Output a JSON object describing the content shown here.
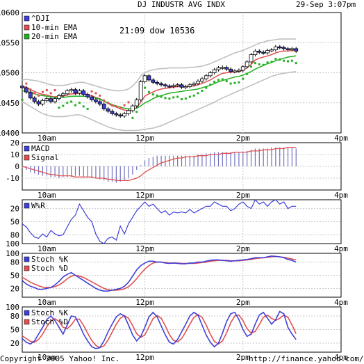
{
  "header": {
    "title": "DJ INDUSTR AVG INDX",
    "timestamp": "29-Sep 3:07pm"
  },
  "footer": {
    "copyright": "Copyright 2005 Yahoo! Inc.",
    "url": "http://finance.yahoo.com/"
  },
  "x_axis": {
    "range_hours": [
      9.5,
      16.0
    ],
    "ticks": [
      {
        "label": "10am",
        "t": 10.0
      },
      {
        "label": "12pm",
        "t": 12.0
      },
      {
        "label": "2pm",
        "t": 14.0
      },
      {
        "label": "4pm",
        "t": 16.0
      }
    ]
  },
  "chart_data": [
    {
      "type": "candlestick",
      "annotation": "21:09 dow 10536",
      "ylim": [
        10400,
        10600
      ],
      "yticks": [
        10400,
        10450,
        10500,
        10550,
        10600
      ],
      "grid": true,
      "legend_position": "top-left",
      "series": [
        {
          "name": "^DJI",
          "color": "#3f3fd8"
        },
        {
          "name": "10-min EMA",
          "color": "#e05050"
        },
        {
          "name": "20-min EMA",
          "color": "#22b022"
        }
      ],
      "t": [
        9.5,
        9.583,
        9.667,
        9.75,
        9.833,
        9.917,
        10.0,
        10.083,
        10.167,
        10.25,
        10.333,
        10.417,
        10.5,
        10.583,
        10.667,
        10.75,
        10.833,
        10.917,
        11.0,
        11.083,
        11.167,
        11.25,
        11.333,
        11.417,
        11.5,
        11.583,
        11.667,
        11.75,
        11.833,
        11.917,
        12.0,
        12.083,
        12.167,
        12.25,
        12.333,
        12.417,
        12.5,
        12.583,
        12.667,
        12.75,
        12.833,
        12.917,
        13.0,
        13.083,
        13.167,
        13.25,
        13.333,
        13.417,
        13.5,
        13.583,
        13.667,
        13.75,
        13.833,
        13.917,
        14.0,
        14.083,
        14.167,
        14.25,
        14.333,
        14.417,
        14.5,
        14.583,
        14.667,
        14.75,
        14.833,
        14.917,
        15.0,
        15.083
      ],
      "price": [
        10475,
        10468,
        10458,
        10452,
        10448,
        10454,
        10457,
        10452,
        10457,
        10462,
        10465,
        10470,
        10472,
        10466,
        10470,
        10464,
        10460,
        10455,
        10452,
        10448,
        10440,
        10436,
        10432,
        10430,
        10428,
        10432,
        10437,
        10445,
        10455,
        10485,
        10495,
        10488,
        10484,
        10482,
        10480,
        10478,
        10477,
        10479,
        10480,
        10476,
        10477,
        10480,
        10482,
        10486,
        10490,
        10495,
        10500,
        10505,
        10508,
        10509,
        10506,
        10502,
        10503,
        10504,
        10510,
        10518,
        10530,
        10536,
        10534,
        10533,
        10537,
        10538,
        10543,
        10542,
        10540,
        10539,
        10540,
        10536
      ],
      "ema10": [
        10477,
        10476,
        10472,
        10469,
        10466,
        10464,
        10463,
        10461,
        10460,
        10461,
        10461,
        10463,
        10465,
        10465,
        10466,
        10465,
        10464,
        10462,
        10459,
        10457,
        10453,
        10449,
        10445,
        10443,
        10440,
        10438,
        10437,
        10438,
        10442,
        10451,
        10461,
        10465,
        10468,
        10471,
        10473,
        10474,
        10475,
        10476,
        10477,
        10477,
        10477,
        10478,
        10478,
        10480,
        10482,
        10485,
        10488,
        10492,
        10496,
        10499,
        10500,
        10501,
        10501,
        10502,
        10504,
        10508,
        10514,
        10521,
        10524,
        10526,
        10528,
        10530,
        10533,
        10535,
        10536,
        10536,
        10537,
        10536
      ],
      "ema20": [
        10470,
        10469,
        10467,
        10465,
        10463,
        10462,
        10461,
        10460,
        10459,
        10459,
        10459,
        10460,
        10461,
        10461,
        10461,
        10461,
        10460,
        10459,
        10458,
        10456,
        10453,
        10450,
        10447,
        10445,
        10443,
        10441,
        10440,
        10440,
        10441,
        10445,
        10450,
        10453,
        10457,
        10460,
        10462,
        10464,
        10466,
        10467,
        10468,
        10469,
        10470,
        10471,
        10472,
        10473,
        10475,
        10477,
        10479,
        10482,
        10485,
        10487,
        10489,
        10491,
        10493,
        10494,
        10496,
        10499,
        10502,
        10506,
        10509,
        10512,
        10515,
        10517,
        10520,
        10522,
        10524,
        10526,
        10527,
        10528
      ],
      "bollinger_upper": [
        10488,
        10489,
        10488,
        10487,
        10486,
        10484,
        10482,
        10480,
        10479,
        10479,
        10479,
        10480,
        10482,
        10483,
        10484,
        10484,
        10482,
        10480,
        10478,
        10476,
        10474,
        10472,
        10471,
        10470,
        10470,
        10471,
        10473,
        10478,
        10485,
        10495,
        10500,
        10503,
        10505,
        10506,
        10507,
        10507,
        10508,
        10508,
        10508,
        10508,
        10508,
        10509,
        10509,
        10510,
        10511,
        10513,
        10515,
        10518,
        10521,
        10524,
        10527,
        10530,
        10533,
        10535,
        10537,
        10540,
        10543,
        10546,
        10549,
        10551,
        10553,
        10554,
        10555,
        10556,
        10556,
        10556,
        10556,
        10556
      ],
      "bollinger_lower": [
        10452,
        10448,
        10444,
        10440,
        10436,
        10432,
        10430,
        10428,
        10427,
        10427,
        10427,
        10428,
        10429,
        10430,
        10430,
        10428,
        10425,
        10422,
        10419,
        10416,
        10413,
        10410,
        10408,
        10406,
        10405,
        10404,
        10404,
        10404,
        10404,
        10405,
        10406,
        10407,
        10408,
        10410,
        10412,
        10415,
        10418,
        10421,
        10424,
        10427,
        10430,
        10433,
        10436,
        10439,
        10442,
        10445,
        10448,
        10451,
        10455,
        10458,
        10461,
        10464,
        10467,
        10470,
        10473,
        10476,
        10479,
        10482,
        10485,
        10488,
        10491,
        10494,
        10496,
        10498,
        10499,
        10500,
        10501,
        10502
      ]
    },
    {
      "type": "bar+line",
      "ylim": [
        -20,
        20
      ],
      "yticks": [
        -10,
        0,
        10,
        20
      ],
      "legend_position": "top-left",
      "series": [
        {
          "name": "MACD",
          "color": "#3f3fd8"
        },
        {
          "name": "Signal",
          "color": "#e05050"
        }
      ],
      "t": [
        9.5,
        9.583,
        9.667,
        9.75,
        9.833,
        9.917,
        10.0,
        10.083,
        10.167,
        10.25,
        10.333,
        10.417,
        10.5,
        10.583,
        10.667,
        10.75,
        10.833,
        10.917,
        11.0,
        11.083,
        11.167,
        11.25,
        11.333,
        11.417,
        11.5,
        11.583,
        11.667,
        11.75,
        11.833,
        11.917,
        12.0,
        12.083,
        12.167,
        12.25,
        12.333,
        12.417,
        12.5,
        12.583,
        12.667,
        12.75,
        12.833,
        12.917,
        13.0,
        13.083,
        13.167,
        13.25,
        13.333,
        13.417,
        13.5,
        13.583,
        13.667,
        13.75,
        13.833,
        13.917,
        14.0,
        14.083,
        14.167,
        14.25,
        14.333,
        14.417,
        14.5,
        14.583,
        14.667,
        14.75,
        14.833,
        14.917,
        15.0,
        15.083
      ],
      "macd": [
        -1,
        -3,
        -5,
        -6,
        -7,
        -8,
        -8,
        -9,
        -9,
        -10,
        -9,
        -9,
        -9,
        -8,
        -8,
        -9,
        -9,
        -10,
        -10,
        -11,
        -12,
        -13,
        -13,
        -14,
        -13,
        -12,
        -10,
        -7,
        -3,
        1,
        5,
        7,
        8,
        9,
        9,
        9,
        9,
        9,
        9,
        9,
        9,
        9,
        9,
        10,
        10,
        11,
        11,
        12,
        12,
        12,
        12,
        12,
        12,
        12,
        12,
        13,
        14,
        15,
        15,
        15,
        15,
        16,
        16,
        16,
        16,
        16,
        16,
        15
      ],
      "signal": [
        0,
        -1,
        -2,
        -3,
        -4,
        -5,
        -6,
        -7,
        -7,
        -8,
        -8,
        -8,
        -8,
        -9,
        -9,
        -9,
        -9,
        -9,
        -10,
        -10,
        -10,
        -11,
        -11,
        -12,
        -12,
        -12,
        -12,
        -11,
        -10,
        -8,
        -5,
        -3,
        -1,
        1,
        3,
        4,
        5,
        6,
        7,
        7,
        8,
        8,
        8,
        9,
        9,
        9,
        10,
        10,
        10,
        11,
        11,
        11,
        12,
        12,
        12,
        12,
        13,
        13,
        13,
        14,
        14,
        14,
        15,
        15,
        15,
        16,
        16,
        16
      ]
    },
    {
      "type": "line",
      "ylim": [
        100,
        0
      ],
      "yticks": [
        20,
        50,
        80,
        100
      ],
      "inverted": true,
      "legend_position": "top-left",
      "series": [
        {
          "name": "W%R",
          "color": "#3f3fd8"
        }
      ],
      "t": [
        9.5,
        9.583,
        9.667,
        9.75,
        9.833,
        9.917,
        10.0,
        10.083,
        10.167,
        10.25,
        10.333,
        10.417,
        10.5,
        10.583,
        10.667,
        10.75,
        10.833,
        10.917,
        11.0,
        11.083,
        11.167,
        11.25,
        11.333,
        11.417,
        11.5,
        11.583,
        11.667,
        11.75,
        11.833,
        11.917,
        12.0,
        12.083,
        12.167,
        12.25,
        12.333,
        12.417,
        12.5,
        12.583,
        12.667,
        12.75,
        12.833,
        12.917,
        13.0,
        13.083,
        13.167,
        13.25,
        13.333,
        13.417,
        13.5,
        13.583,
        13.667,
        13.75,
        13.833,
        13.917,
        14.0,
        14.083,
        14.167,
        14.25,
        14.333,
        14.417,
        14.5,
        14.583,
        14.667,
        14.75,
        14.833,
        14.917,
        15.0,
        15.083
      ],
      "values": [
        55,
        62,
        75,
        85,
        88,
        78,
        85,
        70,
        78,
        82,
        80,
        62,
        45,
        35,
        10,
        25,
        40,
        50,
        78,
        95,
        100,
        88,
        85,
        92,
        60,
        78,
        55,
        40,
        25,
        15,
        5,
        15,
        10,
        20,
        30,
        25,
        35,
        28,
        30,
        28,
        30,
        22,
        30,
        25,
        20,
        15,
        15,
        5,
        10,
        15,
        15,
        25,
        20,
        10,
        5,
        15,
        20,
        0,
        10,
        5,
        15,
        5,
        0,
        10,
        5,
        20,
        15,
        15
      ]
    },
    {
      "type": "line",
      "ylim": [
        0,
        100
      ],
      "yticks": [
        20,
        50,
        80,
        100
      ],
      "legend_position": "top-left",
      "series": [
        {
          "name": "Stoch %K",
          "color": "#3f3fd8"
        },
        {
          "name": "Stoch %D",
          "color": "#e05050"
        }
      ],
      "t": [
        9.5,
        9.583,
        9.667,
        9.75,
        9.833,
        9.917,
        10.0,
        10.083,
        10.167,
        10.25,
        10.333,
        10.417,
        10.5,
        10.583,
        10.667,
        10.75,
        10.833,
        10.917,
        11.0,
        11.083,
        11.167,
        11.25,
        11.333,
        11.417,
        11.5,
        11.583,
        11.667,
        11.75,
        11.833,
        11.917,
        12.0,
        12.083,
        12.167,
        12.25,
        12.333,
        12.417,
        12.5,
        12.583,
        12.667,
        12.75,
        12.833,
        12.917,
        13.0,
        13.083,
        13.167,
        13.25,
        13.333,
        13.417,
        13.5,
        13.583,
        13.667,
        13.75,
        13.833,
        13.917,
        14.0,
        14.083,
        14.167,
        14.25,
        14.333,
        14.417,
        14.5,
        14.583,
        14.667,
        14.75,
        14.833,
        14.917,
        15.0,
        15.083
      ],
      "k": [
        38,
        30,
        25,
        22,
        18,
        18,
        20,
        22,
        28,
        36,
        46,
        52,
        56,
        50,
        44,
        38,
        32,
        26,
        20,
        16,
        14,
        14,
        16,
        18,
        20,
        25,
        34,
        48,
        62,
        72,
        78,
        82,
        82,
        80,
        80,
        78,
        77,
        78,
        77,
        76,
        76,
        78,
        78,
        80,
        80,
        82,
        84,
        85,
        85,
        84,
        83,
        82,
        83,
        84,
        85,
        86,
        88,
        90,
        90,
        90,
        92,
        94,
        93,
        92,
        90,
        86,
        84,
        80
      ],
      "d": [
        45,
        40,
        34,
        30,
        26,
        23,
        22,
        22,
        24,
        28,
        34,
        42,
        48,
        50,
        48,
        45,
        40,
        35,
        30,
        25,
        20,
        17,
        16,
        16,
        17,
        19,
        24,
        32,
        42,
        54,
        64,
        72,
        78,
        80,
        80,
        79,
        78,
        78,
        78,
        77,
        77,
        77,
        77,
        78,
        79,
        80,
        82,
        83,
        84,
        84,
        84,
        83,
        83,
        83,
        84,
        85,
        86,
        88,
        89,
        90,
        91,
        92,
        93,
        92,
        91,
        89,
        87,
        85
      ]
    },
    {
      "type": "line",
      "ylim": [
        0,
        100
      ],
      "yticks": [
        20,
        50,
        80,
        100
      ],
      "legend_position": "top-left",
      "series": [
        {
          "name": "Stoch %K",
          "color": "#3f3fd8"
        },
        {
          "name": "Stoch %D",
          "color": "#e05050"
        }
      ],
      "t": [
        9.5,
        9.583,
        9.667,
        9.75,
        9.833,
        9.917,
        10.0,
        10.083,
        10.167,
        10.25,
        10.333,
        10.417,
        10.5,
        10.583,
        10.667,
        10.75,
        10.833,
        10.917,
        11.0,
        11.083,
        11.167,
        11.25,
        11.333,
        11.417,
        11.5,
        11.583,
        11.667,
        11.75,
        11.833,
        11.917,
        12.0,
        12.083,
        12.167,
        12.25,
        12.333,
        12.417,
        12.5,
        12.583,
        12.667,
        12.75,
        12.833,
        12.917,
        13.0,
        13.083,
        13.167,
        13.25,
        13.333,
        13.417,
        13.5,
        13.583,
        13.667,
        13.75,
        13.833,
        13.917,
        14.0,
        14.083,
        14.167,
        14.25,
        14.333,
        14.417,
        14.5,
        14.583,
        14.667,
        14.75,
        14.833,
        14.917,
        15.0,
        15.083
      ],
      "k": [
        30,
        22,
        18,
        25,
        40,
        55,
        72,
        80,
        70,
        55,
        40,
        60,
        80,
        78,
        60,
        40,
        25,
        12,
        8,
        10,
        25,
        45,
        62,
        78,
        85,
        80,
        60,
        38,
        25,
        35,
        55,
        78,
        88,
        78,
        58,
        38,
        22,
        18,
        28,
        45,
        62,
        80,
        88,
        82,
        60,
        38,
        22,
        12,
        20,
        42,
        68,
        85,
        88,
        72,
        50,
        35,
        40,
        62,
        82,
        88,
        75,
        62,
        72,
        90,
        85,
        55,
        40,
        28
      ],
      "d": [
        36,
        30,
        24,
        22,
        28,
        40,
        56,
        69,
        74,
        68,
        55,
        52,
        60,
        73,
        73,
        59,
        42,
        26,
        15,
        10,
        14,
        27,
        44,
        62,
        75,
        81,
        75,
        59,
        41,
        33,
        38,
        56,
        74,
        81,
        75,
        58,
        39,
        26,
        23,
        30,
        45,
        62,
        77,
        83,
        77,
        60,
        40,
        24,
        18,
        25,
        43,
        65,
        80,
        82,
        70,
        52,
        42,
        46,
        61,
        77,
        82,
        75,
        70,
        75,
        82,
        77,
        60,
        41
      ]
    }
  ]
}
